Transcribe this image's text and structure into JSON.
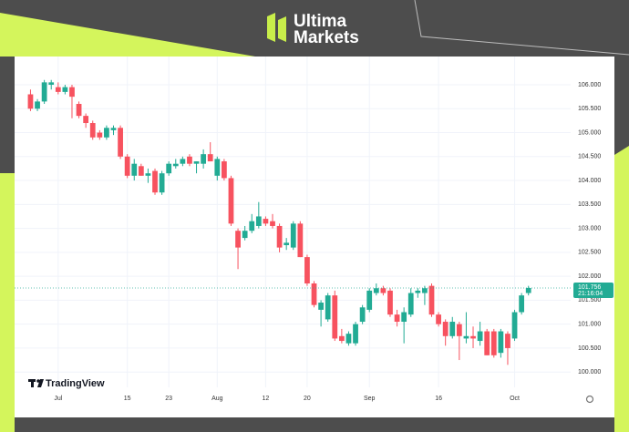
{
  "brand": {
    "line1": "Ultima",
    "line2": "Markets"
  },
  "chart_data": {
    "type": "candlestick",
    "watermark": "TradingView",
    "categories": [
      null,
      null,
      null,
      null,
      "Jul",
      null,
      null,
      null,
      null,
      null,
      null,
      null,
      null,
      null,
      "15",
      null,
      null,
      null,
      null,
      null,
      "23",
      null,
      null,
      null,
      null,
      null,
      null,
      "Aug",
      null,
      null,
      null,
      null,
      null,
      null,
      "12",
      null,
      null,
      null,
      null,
      null,
      "20",
      null,
      null,
      null,
      null,
      null,
      null,
      null,
      null,
      "Sep",
      null,
      null,
      null,
      null,
      null,
      null,
      null,
      null,
      null,
      "16",
      null,
      null,
      null,
      null,
      null,
      null,
      null,
      null,
      null,
      null,
      "Oct",
      null,
      null
    ],
    "series": [
      {
        "up_color": "#22ab94",
        "down_color": "#f7525f",
        "open": [
          105.8,
          105.5,
          105.65,
          106.0,
          105.95,
          105.85,
          105.95,
          105.6,
          105.35,
          105.2,
          105.0,
          104.9,
          105.05,
          105.1,
          104.5,
          104.1,
          104.3,
          104.1,
          104.2,
          103.75,
          104.15,
          104.3,
          104.35,
          104.5,
          104.35,
          104.35,
          104.55,
          104.1,
          104.4,
          104.05,
          102.95,
          102.8,
          102.95,
          103.05,
          103.2,
          103.15,
          103.05,
          102.65,
          102.6,
          103.1,
          102.4,
          101.85,
          101.3,
          101.1,
          101.6,
          100.75,
          100.6,
          100.6,
          101.05,
          101.3,
          101.65,
          101.75,
          101.7,
          101.2,
          101.05,
          101.2,
          101.65,
          101.65,
          101.8,
          101.2,
          101.05,
          100.75,
          101.0,
          100.7,
          100.75,
          100.65,
          100.85,
          100.85,
          100.4,
          100.8,
          100.7,
          101.25,
          101.65
        ],
        "high": [
          105.9,
          105.7,
          106.1,
          106.1,
          106.05,
          106.0,
          106.0,
          105.65,
          105.4,
          105.25,
          105.05,
          105.15,
          105.15,
          105.15,
          104.55,
          104.45,
          104.35,
          104.25,
          104.25,
          104.2,
          104.4,
          104.45,
          104.5,
          104.55,
          104.4,
          104.65,
          104.8,
          104.5,
          104.45,
          104.1,
          103.0,
          103.05,
          103.3,
          103.55,
          103.25,
          103.3,
          103.1,
          102.8,
          103.15,
          103.15,
          102.45,
          101.9,
          101.5,
          101.65,
          101.7,
          100.9,
          100.85,
          101.05,
          101.4,
          101.75,
          101.85,
          101.8,
          101.75,
          101.3,
          101.35,
          101.75,
          101.75,
          101.8,
          101.85,
          101.25,
          101.1,
          101.15,
          101.05,
          101.25,
          100.95,
          101.05,
          100.9,
          100.9,
          100.9,
          100.85,
          101.3,
          101.65,
          101.8
        ],
        "low": [
          105.45,
          105.45,
          105.6,
          105.9,
          105.8,
          105.8,
          105.3,
          105.3,
          105.1,
          104.85,
          104.85,
          104.85,
          104.95,
          104.45,
          104.05,
          104.0,
          104.1,
          103.95,
          103.7,
          103.7,
          104.1,
          104.25,
          104.3,
          104.3,
          104.15,
          104.25,
          104.4,
          104.0,
          104.0,
          103.05,
          102.15,
          102.75,
          102.9,
          103.0,
          103.05,
          103.0,
          102.5,
          102.55,
          102.55,
          102.4,
          101.8,
          101.35,
          100.95,
          101.05,
          100.65,
          100.6,
          100.55,
          100.55,
          101.0,
          101.25,
          101.6,
          101.6,
          101.15,
          100.95,
          100.6,
          101.15,
          101.55,
          101.4,
          101.15,
          100.95,
          100.55,
          100.7,
          100.25,
          100.6,
          100.5,
          100.55,
          100.35,
          100.3,
          100.3,
          100.15,
          100.65,
          101.2,
          101.6
        ],
        "close": [
          105.5,
          105.65,
          106.05,
          106.05,
          105.85,
          105.95,
          105.75,
          105.35,
          105.2,
          104.9,
          104.9,
          105.1,
          105.1,
          104.5,
          104.1,
          104.35,
          104.1,
          104.15,
          103.75,
          104.15,
          104.35,
          104.35,
          104.45,
          104.35,
          104.4,
          104.55,
          104.4,
          104.45,
          104.05,
          103.1,
          102.6,
          102.95,
          103.15,
          103.25,
          103.1,
          103.05,
          102.6,
          102.7,
          103.1,
          102.4,
          101.85,
          101.4,
          101.45,
          101.6,
          100.7,
          100.65,
          100.8,
          101.0,
          101.35,
          101.7,
          101.75,
          101.65,
          101.2,
          101.05,
          101.25,
          101.65,
          101.7,
          101.75,
          101.2,
          101.0,
          100.75,
          101.05,
          100.75,
          100.75,
          100.7,
          100.85,
          100.35,
          100.35,
          100.85,
          100.5,
          101.25,
          101.6,
          101.756
        ]
      }
    ],
    "last_price": {
      "value": 101.756,
      "label": "101.756",
      "countdown": "21:16:04",
      "color": "#22ab94"
    },
    "ylim": [
      99.68,
      106.59
    ],
    "yticks": [
      {
        "value": 100,
        "label": "100.000"
      },
      {
        "value": 100.5,
        "label": "100.500"
      },
      {
        "value": 101,
        "label": "101.000"
      },
      {
        "value": 101.5,
        "label": "101.500"
      },
      {
        "value": 102,
        "label": "102.000"
      },
      {
        "value": 102.5,
        "label": "102.500"
      },
      {
        "value": 103,
        "label": "103.000"
      },
      {
        "value": 103.5,
        "label": "103.500"
      },
      {
        "value": 104,
        "label": "104.000"
      },
      {
        "value": 104.5,
        "label": "104.500"
      },
      {
        "value": 105,
        "label": "105.000"
      },
      {
        "value": 105.5,
        "label": "105.500"
      },
      {
        "value": 106,
        "label": "106.000"
      }
    ],
    "grid": true
  }
}
